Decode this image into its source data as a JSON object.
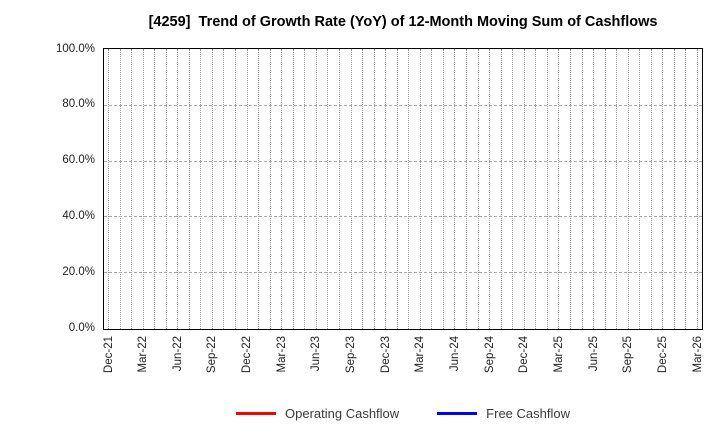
{
  "chart_data": {
    "type": "line",
    "title": "[4259]  Trend of Growth Rate (YoY) of 12-Month Moving Sum of Cashflows",
    "x_tick_labels": [
      "Dec-21",
      "Mar-22",
      "Jun-22",
      "Sep-22",
      "Dec-22",
      "Mar-23",
      "Jun-23",
      "Sep-23",
      "Dec-23",
      "Mar-24",
      "Jun-24",
      "Sep-24",
      "Dec-24",
      "Mar-25",
      "Jun-25",
      "Sep-25",
      "Dec-25",
      "Mar-26"
    ],
    "x_minor_gridlines_per_label_interval": 3,
    "y_tick_labels": [
      "0.0%",
      "20.0%",
      "40.0%",
      "60.0%",
      "80.0%",
      "100.0%"
    ],
    "ylim": [
      0,
      100
    ],
    "grid": "on",
    "legend_position": "bottom",
    "series": [
      {
        "name": "Operating Cashflow",
        "color": "#ff0000",
        "values": []
      },
      {
        "name": "Free Cashflow",
        "color": "#0000ff",
        "values": []
      }
    ]
  }
}
